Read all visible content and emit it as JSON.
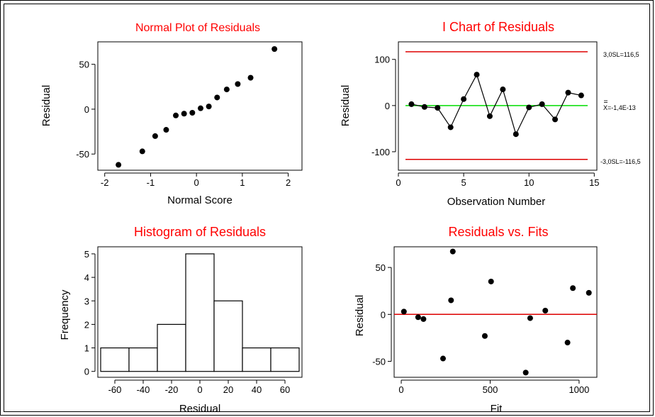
{
  "colors": {
    "title": "#ff0000",
    "center_line": "#00dd00",
    "control_limit": "#dd0000",
    "zero_line": "#dd0000",
    "axis": "#000000",
    "point": "#000000"
  },
  "chart_data": [
    {
      "id": "normal",
      "type": "scatter",
      "title": "Normal Plot of Residuals",
      "xlabel": "Normal Score",
      "ylabel": "Residual",
      "xlim": [
        -2.15,
        2.3
      ],
      "ylim": [
        -68,
        75
      ],
      "xticks": [
        -2,
        -1,
        0,
        1,
        2
      ],
      "yticks": [
        -50,
        0,
        50
      ],
      "x": [
        -1.7,
        -1.18,
        -0.9,
        -0.66,
        -0.45,
        -0.27,
        -0.09,
        0.09,
        0.27,
        0.45,
        0.66,
        0.9,
        1.18,
        1.7
      ],
      "y": [
        -62,
        -47,
        -30,
        -23,
        -7,
        -5,
        -4,
        1,
        3,
        13,
        22,
        28,
        35,
        67
      ]
    },
    {
      "id": "ichart",
      "type": "line",
      "title": "I Chart of Residuals",
      "xlabel": "Observation Number",
      "ylabel": "Residual",
      "xlim": [
        0,
        15.2
      ],
      "ylim": [
        -140,
        138
      ],
      "xticks": [
        0,
        5,
        10,
        15
      ],
      "yticks": [
        -100,
        0,
        100
      ],
      "x": [
        1,
        2,
        3,
        4,
        5,
        6,
        7,
        8,
        9,
        10,
        11,
        12,
        13,
        14
      ],
      "y": [
        3,
        -3,
        -5,
        -47,
        14,
        67,
        -23,
        35,
        -62,
        -4,
        3,
        -30,
        28,
        22
      ],
      "ucl": 116.5,
      "lcl": -116.5,
      "center": 0,
      "ucl_label": "3,0SL=116,5",
      "lcl_label": "-3,0SL=-116,5",
      "center_label": "X=-1,4E-13"
    },
    {
      "id": "hist",
      "type": "bar",
      "title": "Histogram of Residuals",
      "xlabel": "Residual",
      "ylabel": "Frequency",
      "xlim": [
        -72,
        72
      ],
      "ylim": [
        -0.25,
        5.3
      ],
      "xticks": [
        -60,
        -40,
        -20,
        0,
        20,
        40,
        60
      ],
      "yticks": [
        0,
        1,
        2,
        3,
        4,
        5
      ],
      "bins": [
        {
          "lo": -70,
          "hi": -50,
          "value": 1
        },
        {
          "lo": -50,
          "hi": -30,
          "value": 1
        },
        {
          "lo": -30,
          "hi": -10,
          "value": 2
        },
        {
          "lo": -10,
          "hi": 10,
          "value": 5
        },
        {
          "lo": 10,
          "hi": 30,
          "value": 3
        },
        {
          "lo": 30,
          "hi": 50,
          "value": 1
        },
        {
          "lo": 50,
          "hi": 70,
          "value": 1
        }
      ]
    },
    {
      "id": "fits",
      "type": "scatter",
      "title": "Residuals vs. Fits",
      "xlabel": "Fit",
      "ylabel": "Residual",
      "xlim": [
        -40,
        1100
      ],
      "ylim": [
        -67,
        72
      ],
      "xticks": [
        0,
        500,
        1000
      ],
      "yticks": [
        -50,
        0,
        50
      ],
      "x": [
        15,
        95,
        125,
        235,
        280,
        290,
        470,
        505,
        700,
        725,
        810,
        935,
        965,
        1055
      ],
      "y": [
        3,
        -3,
        -5,
        -47,
        15,
        67,
        -23,
        35,
        -62,
        -4,
        4,
        -30,
        28,
        23
      ],
      "ref_line": 0
    }
  ]
}
